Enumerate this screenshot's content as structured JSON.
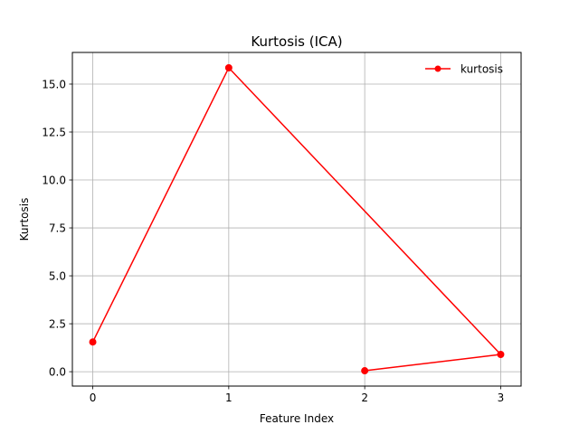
{
  "chart_data": {
    "type": "line",
    "title": "Kurtosis (ICA)",
    "xlabel": "Feature Index",
    "ylabel": "Kurtosis",
    "x": [
      0,
      1,
      2,
      3
    ],
    "xticks": [
      "0",
      "1",
      "2",
      "3"
    ],
    "xlim": [
      -0.15,
      3.15
    ],
    "ylim": [
      -0.75,
      16.65
    ],
    "yticks": [
      "0.0",
      "2.5",
      "5.0",
      "7.5",
      "10.0",
      "12.5",
      "15.0"
    ],
    "ytick_values": [
      0.0,
      2.5,
      5.0,
      7.5,
      10.0,
      12.5,
      15.0
    ],
    "grid": true,
    "legend_position": "upper right",
    "series": [
      {
        "name": "kurtosis",
        "color": "#ff0000",
        "marker": "circle",
        "points": [
          {
            "x": 0,
            "y": 1.55
          },
          {
            "x": 1,
            "y": 15.85
          },
          {
            "x": 3,
            "y": 0.9
          },
          {
            "x": 2,
            "y": 0.05
          }
        ]
      }
    ]
  }
}
